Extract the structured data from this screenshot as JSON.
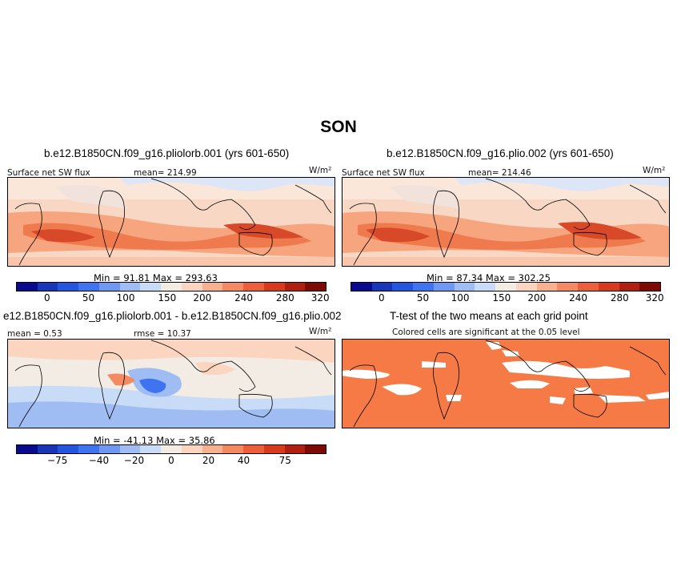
{
  "title": "SON",
  "panels": {
    "p1": {
      "title": "b.e12.B1850CN.f09_g16.pliolorb.001 (yrs 601-650)",
      "variable": "Surface net SW flux",
      "mean_label": "mean= 214.99",
      "units": "W/m²",
      "minmax": "Min =  91.81 Max = 293.63"
    },
    "p2": {
      "title": "b.e12.B1850CN.f09_g16.plio.002 (yrs 601-650)",
      "variable": "Surface net SW flux",
      "mean_label": "mean= 214.46",
      "units": "W/m²",
      "minmax": "Min =  87.34 Max = 302.25"
    },
    "p3": {
      "title": "e12.B1850CN.f09_g16.pliolorb.001 - b.e12.B1850CN.f09_g16.plio.002",
      "mean_label": "mean =  0.53",
      "rmse_label": "rmse =  10.37",
      "units": "W/m²",
      "minmax": "Min = -41.13 Max =  35.86"
    },
    "p4": {
      "title": "T-test of the two means at each grid point",
      "subtitle": "Colored cells are significant at the 0.05 level"
    }
  },
  "colorbars": {
    "abs": {
      "colors": [
        "#0a0a8f",
        "#1a36b8",
        "#2456e0",
        "#3f74f0",
        "#6f98f2",
        "#9fbdf3",
        "#c9dcf7",
        "#f3ece4",
        "#fbd5c0",
        "#f9b08f",
        "#f58a62",
        "#ec5f3a",
        "#d83a1d",
        "#b01f10",
        "#7d0a05"
      ],
      "labels": [
        "0",
        "50",
        "100",
        "150",
        "200",
        "240",
        "280",
        "320"
      ]
    },
    "diff": {
      "colors": [
        "#0a0a8f",
        "#1a36b8",
        "#2456e0",
        "#3f74f0",
        "#6f98f2",
        "#9fbdf3",
        "#c9dcf7",
        "#f3ece4",
        "#fbd5c0",
        "#f9b08f",
        "#f58a62",
        "#ec5f3a",
        "#d83a1d",
        "#b01f10",
        "#7d0a05"
      ],
      "labels": [
        "−75",
        "−40",
        "−20",
        "0",
        "20",
        "40",
        "75"
      ]
    }
  }
}
